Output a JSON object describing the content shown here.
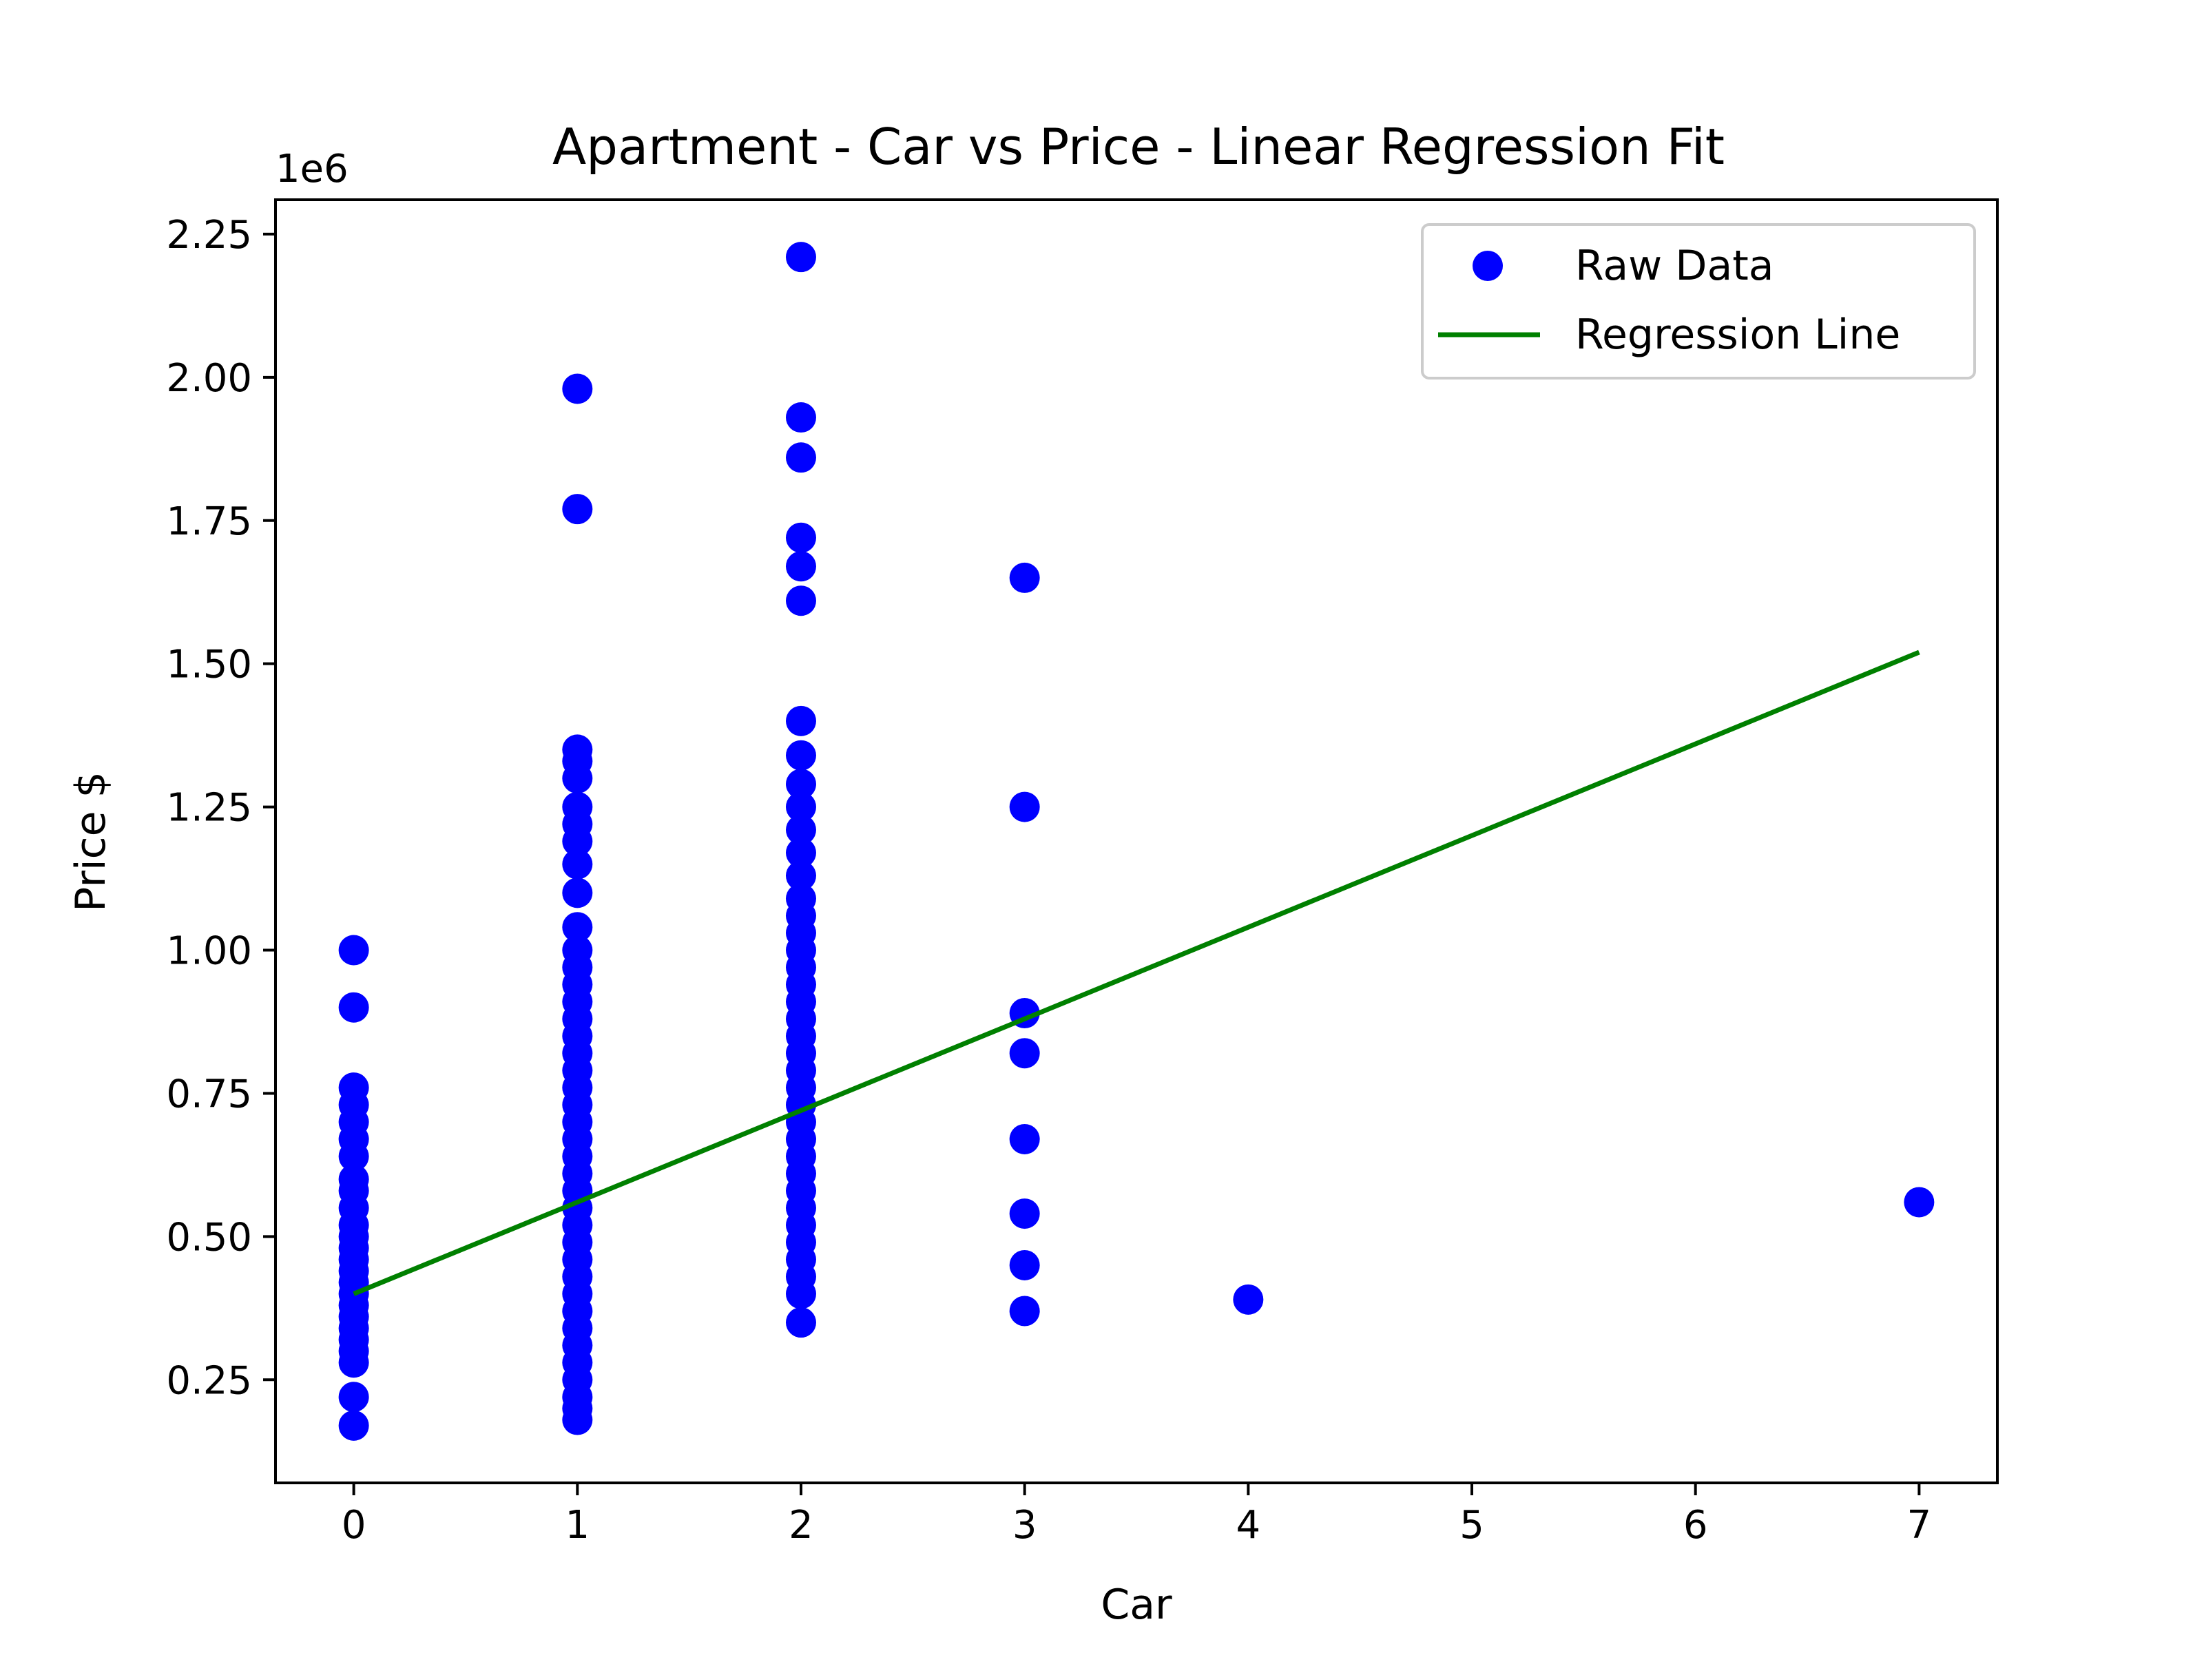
{
  "chart_data": {
    "type": "scatter",
    "title": "Apartment - Car vs Price - Linear Regression Fit",
    "xlabel": "Car",
    "ylabel": "Price $",
    "y_offset_label": "1e6",
    "xlim": [
      -0.35,
      7.35
    ],
    "ylim": [
      0.07,
      2.31
    ],
    "x_ticks": [
      0,
      1,
      2,
      3,
      4,
      5,
      6,
      7
    ],
    "x_tick_labels": [
      "0",
      "1",
      "2",
      "3",
      "4",
      "5",
      "6",
      "7"
    ],
    "y_ticks": [
      0.25,
      0.5,
      0.75,
      1.0,
      1.25,
      1.5,
      1.75,
      2.0,
      2.25
    ],
    "y_tick_labels": [
      "0.25",
      "0.50",
      "0.75",
      "1.00",
      "1.25",
      "1.50",
      "1.75",
      "2.00",
      "2.25"
    ],
    "grid": false,
    "legend_position": "top-right",
    "series": [
      {
        "name": "Raw Data",
        "kind": "scatter",
        "color": "#0000ff",
        "points": [
          [
            0,
            0.17
          ],
          [
            0,
            0.22
          ],
          [
            0,
            0.28
          ],
          [
            0,
            0.3
          ],
          [
            0,
            0.32
          ],
          [
            0,
            0.34
          ],
          [
            0,
            0.36
          ],
          [
            0,
            0.38
          ],
          [
            0,
            0.4
          ],
          [
            0,
            0.42
          ],
          [
            0,
            0.44
          ],
          [
            0,
            0.46
          ],
          [
            0,
            0.48
          ],
          [
            0,
            0.5
          ],
          [
            0,
            0.52
          ],
          [
            0,
            0.55
          ],
          [
            0,
            0.58
          ],
          [
            0,
            0.6
          ],
          [
            0,
            0.64
          ],
          [
            0,
            0.67
          ],
          [
            0,
            0.7
          ],
          [
            0,
            0.73
          ],
          [
            0,
            0.76
          ],
          [
            0,
            0.9
          ],
          [
            0,
            1.0
          ],
          [
            1,
            0.18
          ],
          [
            1,
            0.2
          ],
          [
            1,
            0.22
          ],
          [
            1,
            0.25
          ],
          [
            1,
            0.28
          ],
          [
            1,
            0.31
          ],
          [
            1,
            0.34
          ],
          [
            1,
            0.37
          ],
          [
            1,
            0.4
          ],
          [
            1,
            0.43
          ],
          [
            1,
            0.46
          ],
          [
            1,
            0.49
          ],
          [
            1,
            0.52
          ],
          [
            1,
            0.55
          ],
          [
            1,
            0.58
          ],
          [
            1,
            0.61
          ],
          [
            1,
            0.64
          ],
          [
            1,
            0.67
          ],
          [
            1,
            0.7
          ],
          [
            1,
            0.73
          ],
          [
            1,
            0.76
          ],
          [
            1,
            0.79
          ],
          [
            1,
            0.82
          ],
          [
            1,
            0.85
          ],
          [
            1,
            0.88
          ],
          [
            1,
            0.91
          ],
          [
            1,
            0.94
          ],
          [
            1,
            0.97
          ],
          [
            1,
            1.0
          ],
          [
            1,
            1.04
          ],
          [
            1,
            1.1
          ],
          [
            1,
            1.15
          ],
          [
            1,
            1.19
          ],
          [
            1,
            1.22
          ],
          [
            1,
            1.25
          ],
          [
            1,
            1.3
          ],
          [
            1,
            1.33
          ],
          [
            1,
            1.35
          ],
          [
            1,
            1.77
          ],
          [
            1,
            1.98
          ],
          [
            2,
            0.35
          ],
          [
            2,
            0.4
          ],
          [
            2,
            0.43
          ],
          [
            2,
            0.46
          ],
          [
            2,
            0.49
          ],
          [
            2,
            0.52
          ],
          [
            2,
            0.55
          ],
          [
            2,
            0.58
          ],
          [
            2,
            0.61
          ],
          [
            2,
            0.64
          ],
          [
            2,
            0.67
          ],
          [
            2,
            0.7
          ],
          [
            2,
            0.73
          ],
          [
            2,
            0.76
          ],
          [
            2,
            0.79
          ],
          [
            2,
            0.82
          ],
          [
            2,
            0.85
          ],
          [
            2,
            0.88
          ],
          [
            2,
            0.91
          ],
          [
            2,
            0.94
          ],
          [
            2,
            0.97
          ],
          [
            2,
            1.0
          ],
          [
            2,
            1.03
          ],
          [
            2,
            1.06
          ],
          [
            2,
            1.09
          ],
          [
            2,
            1.13
          ],
          [
            2,
            1.17
          ],
          [
            2,
            1.21
          ],
          [
            2,
            1.25
          ],
          [
            2,
            1.29
          ],
          [
            2,
            1.34
          ],
          [
            2,
            1.4
          ],
          [
            2,
            1.61
          ],
          [
            2,
            1.67
          ],
          [
            2,
            1.72
          ],
          [
            2,
            1.86
          ],
          [
            2,
            1.93
          ],
          [
            2,
            2.21
          ],
          [
            3,
            0.37
          ],
          [
            3,
            0.45
          ],
          [
            3,
            0.54
          ],
          [
            3,
            0.67
          ],
          [
            3,
            0.82
          ],
          [
            3,
            0.89
          ],
          [
            3,
            1.25
          ],
          [
            3,
            1.65
          ],
          [
            4,
            0.39
          ],
          [
            7,
            0.56
          ]
        ]
      },
      {
        "name": "Regression Line",
        "kind": "line",
        "color": "#008000",
        "points": [
          [
            0,
            0.4
          ],
          [
            7,
            1.52
          ]
        ]
      }
    ]
  }
}
